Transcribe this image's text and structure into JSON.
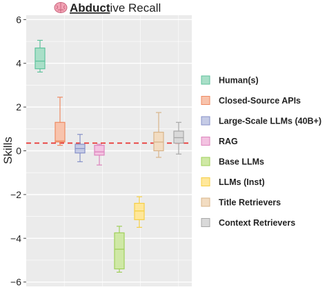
{
  "title": {
    "icon": "brain-icon",
    "bold": "Abduct",
    "rest": "ive Recall"
  },
  "chart_data": {
    "type": "box",
    "title": "Abductive Recall",
    "ylabel": "Skills",
    "xlabel": "",
    "ylim": [
      -6.2,
      6.2
    ],
    "yticks": [
      -6,
      -4,
      -2,
      0,
      2,
      4,
      6
    ],
    "ytick_labels": [
      "−6",
      "−4",
      "−2",
      "0",
      "2",
      "4",
      "6"
    ],
    "grid": true,
    "legend_placement": "right",
    "reference_line": {
      "y": 0.35,
      "style": "dashed",
      "color": "#e8332f"
    },
    "series": [
      {
        "name": "Human(s)",
        "slot": 0,
        "fill": "#a9dfc8",
        "stroke": "#5fc29c",
        "min": 3.6,
        "q1": 3.75,
        "median": 4.1,
        "q3": 4.7,
        "max": 5.05
      },
      {
        "name": "Closed-Source APIs",
        "slot": 1,
        "fill": "#f8c3ac",
        "stroke": "#ee8a62",
        "min": 0.25,
        "q1": 0.4,
        "median": 0.45,
        "q3": 1.3,
        "max": 2.45
      },
      {
        "name": "Large-Scale LLMs (40B+)",
        "slot": 2,
        "fill": "#c5cbe6",
        "stroke": "#8792c8",
        "min": -0.5,
        "q1": -0.1,
        "median": 0.1,
        "q3": 0.3,
        "max": 0.75
      },
      {
        "name": "RAG",
        "slot": 3,
        "fill": "#f3c2e1",
        "stroke": "#dd84bd",
        "min": -0.65,
        "q1": -0.2,
        "median": -0.05,
        "q3": 0.25,
        "max": 0.3
      },
      {
        "name": "Base LLMs",
        "slot": 4,
        "fill": "#cfe8a5",
        "stroke": "#9fcf5a",
        "min": -5.55,
        "q1": -5.4,
        "median": -4.5,
        "q3": -3.75,
        "max": -3.45
      },
      {
        "name": "LLMs (Inst)",
        "slot": 5,
        "fill": "#ffe79a",
        "stroke": "#f5cf45",
        "min": -3.5,
        "q1": -3.15,
        "median": -2.75,
        "q3": -2.4,
        "max": -2.1
      },
      {
        "name": "Title Retrievers",
        "slot": 6,
        "fill": "#f2dcc1",
        "stroke": "#d8b48a",
        "min": -0.3,
        "q1": 0.0,
        "median": 0.4,
        "q3": 0.85,
        "max": 1.75
      },
      {
        "name": "Context Retrievers",
        "slot": 7,
        "fill": "#d9d9d9",
        "stroke": "#a8a8a8",
        "min": -0.15,
        "q1": 0.35,
        "median": 0.6,
        "q3": 0.9,
        "max": 1.3
      }
    ]
  }
}
